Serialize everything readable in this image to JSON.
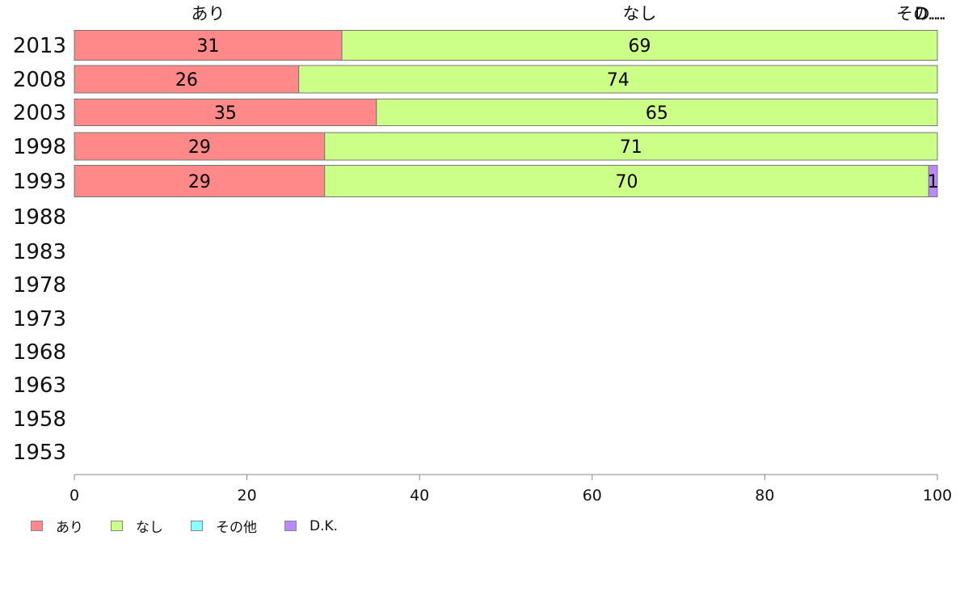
{
  "chart_data": {
    "type": "bar",
    "orientation": "horizontal",
    "stacked": true,
    "categories": [
      "2013",
      "2008",
      "2003",
      "1998",
      "1993",
      "1988",
      "1983",
      "1978",
      "1973",
      "1968",
      "1963",
      "1958",
      "1953"
    ],
    "series": [
      {
        "name": "あり",
        "color": "#ff8888",
        "values": [
          31,
          26,
          35,
          29,
          29,
          null,
          null,
          null,
          null,
          null,
          null,
          null,
          null
        ]
      },
      {
        "name": "なし",
        "color": "#ccff88",
        "values": [
          69,
          74,
          65,
          71,
          70,
          null,
          null,
          null,
          null,
          null,
          null,
          null,
          null
        ]
      },
      {
        "name": "その他",
        "color": "#88ffff",
        "values": [
          0,
          0,
          0,
          0,
          0,
          null,
          null,
          null,
          null,
          null,
          null,
          null,
          null
        ]
      },
      {
        "name": "D.K.",
        "color": "#bb88ff",
        "values": [
          0,
          0,
          0,
          0,
          1,
          null,
          null,
          null,
          null,
          null,
          null,
          null,
          null
        ]
      }
    ],
    "top_labels": [
      "あり",
      "なし",
      "その...",
      "D..."
    ],
    "data_labels": {
      "あり": [
        "31",
        "26",
        "35",
        "29",
        "29"
      ],
      "なし": [
        "69",
        "74",
        "65",
        "71",
        "70"
      ],
      "D.K.": [
        "",
        "",
        "",
        "",
        "1"
      ]
    },
    "xlim": [
      0,
      100
    ],
    "xticks": [
      0,
      20,
      40,
      60,
      80,
      100
    ],
    "title": "",
    "xlabel": "",
    "ylabel": "",
    "grid": false,
    "legend_position": "bottom-left"
  }
}
